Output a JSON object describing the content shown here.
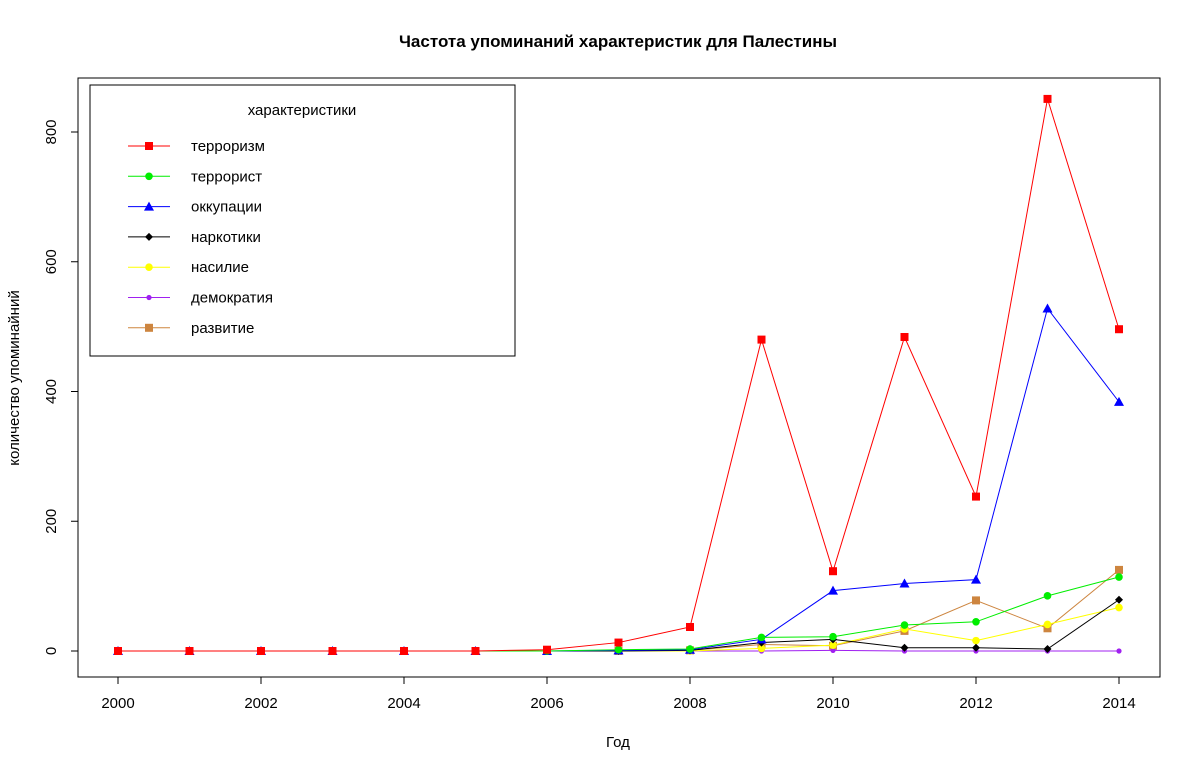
{
  "chart_data": {
    "type": "line",
    "title": "Частота упоминаний характеристик для Палестины",
    "xlabel": "Год",
    "ylabel": "количество упоминайний",
    "xlim": [
      2000,
      2014
    ],
    "ylim": [
      0,
      850
    ],
    "x": [
      2000,
      2001,
      2002,
      2003,
      2004,
      2005,
      2006,
      2007,
      2008,
      2009,
      2010,
      2011,
      2012,
      2013,
      2014
    ],
    "x_ticks": [
      "2000",
      "2002",
      "2004",
      "2006",
      "2008",
      "2010",
      "2012",
      "2014"
    ],
    "y_ticks": [
      "0",
      "200",
      "400",
      "600",
      "800"
    ],
    "grid": false,
    "legend": {
      "title": "характеристики",
      "position": "top-left"
    },
    "series": [
      {
        "name": "терроризм",
        "color": "#ff0000",
        "marker": "square",
        "values": [
          0,
          0,
          0,
          0,
          0,
          0,
          2,
          13,
          37,
          480,
          123,
          484,
          238,
          851,
          496
        ]
      },
      {
        "name": "террорист",
        "color": "#00ee00",
        "marker": "circle",
        "values": [
          0,
          0,
          0,
          0,
          0,
          0,
          0,
          2,
          3,
          21,
          22,
          40,
          45,
          85,
          114
        ]
      },
      {
        "name": "оккупации",
        "color": "#0000ff",
        "marker": "triangle",
        "values": [
          0,
          0,
          0,
          0,
          0,
          0,
          0,
          1,
          2,
          18,
          93,
          104,
          110,
          528,
          384
        ]
      },
      {
        "name": "наркотики",
        "color": "#000000",
        "marker": "diamond",
        "values": [
          0,
          0,
          0,
          0,
          0,
          0,
          0,
          0,
          1,
          13,
          18,
          5,
          5,
          3,
          79
        ]
      },
      {
        "name": "насилие",
        "color": "#ffff00",
        "marker": "circle",
        "values": [
          0,
          0,
          0,
          0,
          0,
          0,
          0,
          0,
          0,
          4,
          9,
          34,
          16,
          41,
          67
        ]
      },
      {
        "name": "демократия",
        "color": "#a020f0",
        "marker": "dot",
        "values": [
          0,
          0,
          0,
          0,
          0,
          0,
          0,
          0,
          0,
          0,
          1,
          0,
          0,
          0,
          0
        ]
      },
      {
        "name": "развитие",
        "color": "#cd853f",
        "marker": "square",
        "values": [
          0,
          0,
          0,
          0,
          0,
          0,
          0,
          0,
          1,
          10,
          8,
          31,
          78,
          35,
          125
        ]
      }
    ]
  }
}
